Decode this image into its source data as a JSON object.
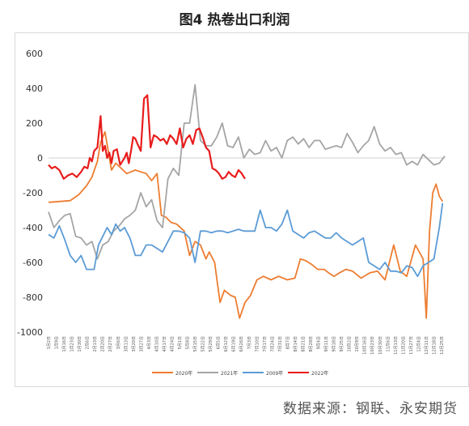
{
  "title": "图4 热卷出口利润",
  "source": "数据来源：钢联、永安期货",
  "chart_data": {
    "type": "line",
    "title": "图4 热卷出口利润",
    "ylim": [
      -1000,
      600
    ],
    "yticks": [
      -1000,
      -800,
      -600,
      -400,
      -200,
      0,
      200,
      400,
      600
    ],
    "xlim": [
      0,
      365
    ],
    "grid": false,
    "legend_position": "bottom",
    "xtick_labels": [
      "1月2日",
      "1月9日",
      "1月16日",
      "1月23日",
      "1月30日",
      "2月6日",
      "2月13日",
      "2月20日",
      "2月27日",
      "3月6日",
      "3月13日",
      "3月20日",
      "3月27日",
      "4月3日",
      "4月10日",
      "4月17日",
      "4月24日",
      "5月1日",
      "5月8日",
      "5月15日",
      "5月22日",
      "5月29日",
      "6月5日",
      "6月12日",
      "6月19日",
      "6月26日",
      "7月3日",
      "7月10日",
      "7月17日",
      "7月24日",
      "7月31日",
      "8月7日",
      "8月14日",
      "8月21日",
      "8月28日",
      "9月4日",
      "9月11日",
      "9月18日",
      "9月25日",
      "10月2日",
      "10月9日",
      "10月16日",
      "10月23日",
      "10月30日",
      "11月6日",
      "11月13日",
      "11月20日",
      "11月27日",
      "12月4日",
      "12月11日",
      "12月18日",
      "12月25日"
    ],
    "series": [
      {
        "name": "2020年",
        "color": "#ED7D31",
        "x": [
          0,
          10,
          20,
          28,
          35,
          40,
          45,
          48,
          52,
          58,
          62,
          67,
          72,
          76,
          80,
          85,
          90,
          95,
          100,
          104,
          108,
          113,
          118,
          125,
          130,
          135,
          140,
          145,
          148,
          153,
          158,
          162,
          168,
          172,
          176,
          181,
          186,
          192,
          198,
          205,
          212,
          220,
          227,
          232,
          237,
          242,
          248,
          254,
          258,
          263,
          268,
          274,
          280,
          288,
          296,
          303,
          310,
          318,
          324,
          330,
          338,
          345,
          348,
          351,
          354,
          357,
          360,
          363
        ],
        "y": [
          -255,
          -250,
          -245,
          -210,
          -160,
          -110,
          -20,
          90,
          150,
          -70,
          -30,
          -60,
          -90,
          -80,
          -70,
          -80,
          -90,
          -130,
          -90,
          -330,
          -340,
          -370,
          -380,
          -420,
          -560,
          -480,
          -500,
          -580,
          -540,
          -600,
          -830,
          -760,
          -790,
          -800,
          -920,
          -830,
          -790,
          -700,
          -680,
          -700,
          -680,
          -700,
          -690,
          -580,
          -590,
          -610,
          -640,
          -640,
          -660,
          -680,
          -660,
          -640,
          -650,
          -690,
          -660,
          -650,
          -700,
          -500,
          -650,
          -680,
          -500,
          -580,
          -920,
          -420,
          -200,
          -150,
          -220,
          -250
        ]
      },
      {
        "name": "2021年",
        "color": "#A5A5A5",
        "x": [
          0,
          5,
          10,
          15,
          20,
          25,
          30,
          35,
          40,
          45,
          50,
          55,
          60,
          65,
          70,
          75,
          80,
          85,
          90,
          95,
          100,
          105,
          110,
          115,
          120,
          125,
          130,
          135,
          140,
          145,
          150,
          155,
          160,
          165,
          170,
          175,
          180,
          185,
          190,
          195,
          200,
          205,
          210,
          215,
          220,
          225,
          230,
          235,
          240,
          245,
          250,
          255,
          260,
          265,
          270,
          275,
          280,
          285,
          290,
          295,
          300,
          305,
          310,
          315,
          320,
          325,
          330,
          335,
          340,
          345,
          350,
          355,
          360,
          365
        ],
        "y": [
          -310,
          -400,
          -360,
          -330,
          -320,
          -450,
          -460,
          -500,
          -480,
          -580,
          -500,
          -480,
          -420,
          -390,
          -350,
          -330,
          -300,
          -200,
          -280,
          -240,
          -360,
          -400,
          -120,
          -60,
          -100,
          200,
          200,
          420,
          100,
          70,
          70,
          120,
          200,
          70,
          60,
          120,
          0,
          50,
          20,
          30,
          100,
          40,
          60,
          0,
          100,
          120,
          80,
          110,
          60,
          100,
          100,
          50,
          60,
          70,
          60,
          140,
          90,
          30,
          70,
          100,
          180,
          80,
          40,
          60,
          20,
          30,
          -40,
          -20,
          -40,
          20,
          -10,
          -40,
          -30,
          10
        ]
      },
      {
        "name": "2009年",
        "color": "#5B9BD5",
        "x": [
          0,
          5,
          10,
          15,
          20,
          25,
          30,
          35,
          38,
          42,
          46,
          50,
          54,
          58,
          62,
          66,
          70,
          75,
          80,
          85,
          90,
          95,
          100,
          105,
          110,
          115,
          120,
          125,
          130,
          135,
          140,
          145,
          150,
          155,
          160,
          165,
          170,
          175,
          180,
          185,
          190,
          195,
          200,
          205,
          210,
          215,
          220,
          225,
          230,
          235,
          240,
          245,
          250,
          255,
          260,
          265,
          270,
          275,
          280,
          285,
          290,
          295,
          300,
          305,
          310,
          315,
          320,
          325,
          330,
          335,
          340,
          345,
          350,
          355,
          360,
          363
        ],
        "y": [
          -440,
          -460,
          -390,
          -470,
          -560,
          -600,
          -560,
          -640,
          -640,
          -640,
          -500,
          -450,
          -400,
          -440,
          -380,
          -420,
          -400,
          -460,
          -560,
          -560,
          -500,
          -500,
          -520,
          -540,
          -480,
          -420,
          -420,
          -430,
          -460,
          -600,
          -420,
          -420,
          -430,
          -420,
          -420,
          -430,
          -420,
          -410,
          -420,
          -420,
          -420,
          -300,
          -400,
          -400,
          -420,
          -380,
          -300,
          -420,
          -440,
          -460,
          -430,
          -420,
          -440,
          -460,
          -460,
          -430,
          -460,
          -480,
          -500,
          -480,
          -460,
          -600,
          -620,
          -640,
          -600,
          -650,
          -650,
          -660,
          -620,
          -630,
          -680,
          -620,
          -600,
          -580,
          -400,
          -260
        ]
      },
      {
        "name": "2022年",
        "color": "#E81C1C",
        "x": [
          0,
          3,
          6,
          10,
          14,
          18,
          22,
          26,
          30,
          33,
          36,
          38,
          40,
          42,
          45,
          48,
          50,
          52,
          54,
          56,
          58,
          60,
          63,
          66,
          68,
          70,
          72,
          74,
          76,
          78,
          80,
          82,
          85,
          88,
          91,
          94,
          97,
          100,
          103,
          106,
          109,
          112,
          115,
          118,
          121,
          124,
          127,
          130,
          133,
          136,
          139,
          142,
          145,
          148,
          151,
          154,
          157,
          160,
          163,
          166,
          169,
          172,
          175,
          178,
          181
        ],
        "y": [
          -40,
          -60,
          -50,
          -70,
          -120,
          -100,
          -90,
          -110,
          -80,
          -50,
          -60,
          0,
          -20,
          40,
          60,
          240,
          40,
          70,
          0,
          30,
          -30,
          40,
          50,
          -40,
          -20,
          0,
          30,
          -30,
          40,
          120,
          110,
          80,
          40,
          340,
          360,
          60,
          130,
          120,
          100,
          110,
          80,
          130,
          110,
          80,
          170,
          60,
          110,
          130,
          80,
          160,
          170,
          120,
          60,
          40,
          -60,
          -70,
          -90,
          -120,
          -110,
          -80,
          -100,
          -110,
          -70,
          -90,
          -120
        ]
      }
    ]
  }
}
